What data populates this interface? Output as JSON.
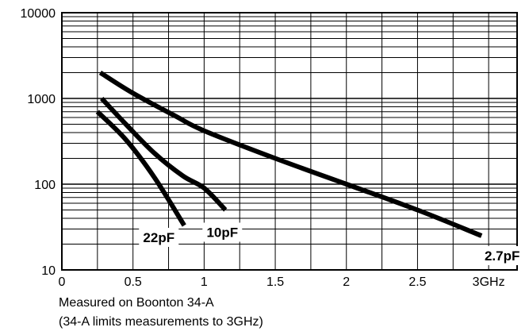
{
  "chart_data": {
    "type": "line",
    "x": {
      "range": [
        0,
        3.2
      ],
      "ticks": [
        0,
        0.5,
        1,
        1.5,
        2,
        2.5,
        3
      ],
      "tick_labels": [
        "0",
        "0.5",
        "1",
        "1.5",
        "2",
        "2.5",
        "3GHz"
      ]
    },
    "y": {
      "scale": "log",
      "range": [
        10,
        10000
      ],
      "ticks": [
        10,
        100,
        1000,
        10000
      ],
      "tick_labels": [
        "10",
        "100",
        "1000",
        "10000"
      ]
    },
    "grid": true,
    "series": [
      {
        "name": "22pF",
        "points": [
          [
            0.25,
            700
          ],
          [
            0.45,
            330
          ],
          [
            0.65,
            120
          ],
          [
            0.86,
            33
          ]
        ]
      },
      {
        "name": "10pF",
        "points": [
          [
            0.28,
            1000
          ],
          [
            0.45,
            500
          ],
          [
            0.65,
            230
          ],
          [
            0.85,
            125
          ],
          [
            1.0,
            90
          ],
          [
            1.15,
            50
          ]
        ]
      },
      {
        "name": "2.7pF",
        "points": [
          [
            0.27,
            2000
          ],
          [
            0.5,
            1150
          ],
          [
            0.8,
            620
          ],
          [
            1.0,
            420
          ],
          [
            1.5,
            200
          ],
          [
            2.0,
            100
          ],
          [
            2.5,
            50
          ],
          [
            2.95,
            25
          ]
        ]
      }
    ],
    "notes": [
      "Measured on Boonton 34-A",
      "(34-A limits measurements to 3GHz)"
    ]
  }
}
